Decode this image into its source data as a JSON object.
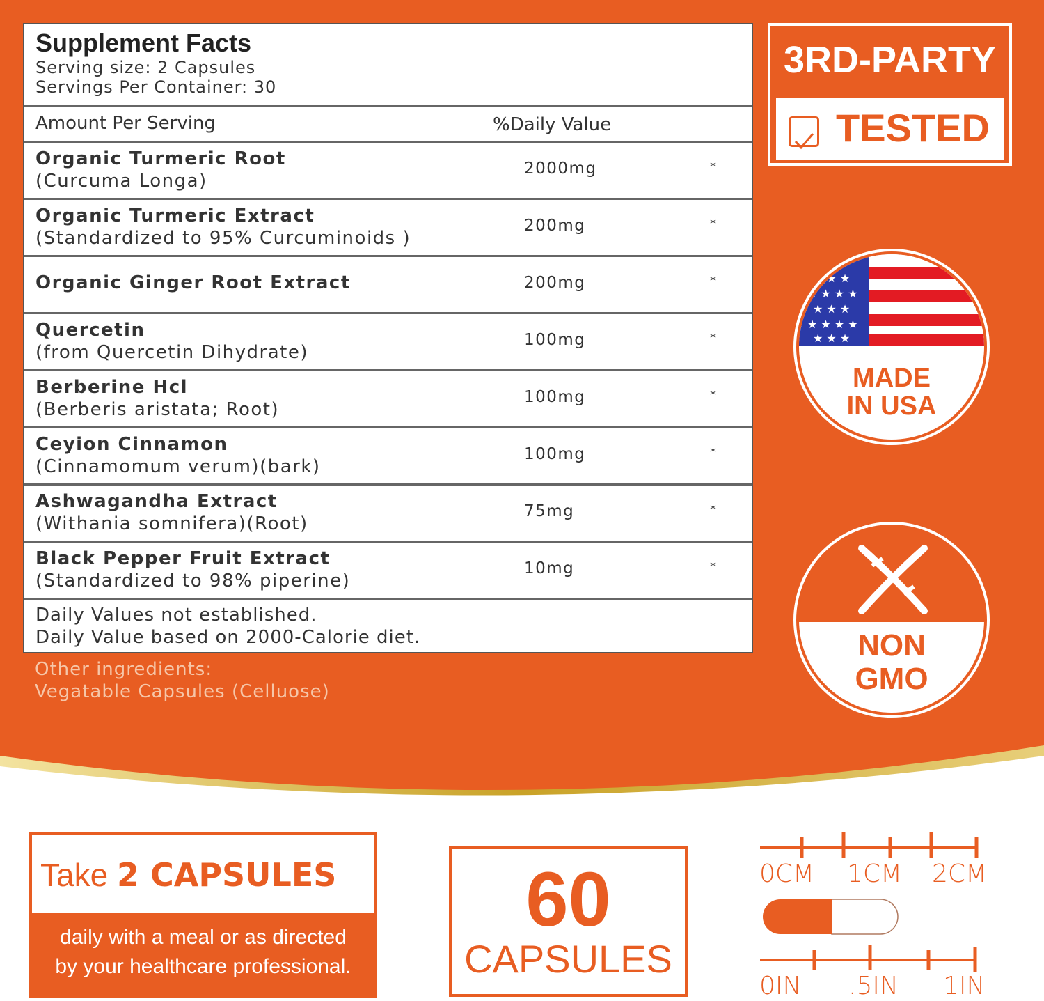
{
  "facts": {
    "title": "Supplement Facts",
    "serving_size": "Serving size: 2 Capsules",
    "servings_per_container": "Servings Per Container: 30",
    "amount_header": "Amount Per Serving",
    "dv_header": "%Daily Value",
    "rows": [
      {
        "name": "Organic Turmeric Root",
        "sub": "(Curcuma Longa)",
        "amount": "2000mg",
        "dv": "*"
      },
      {
        "name": "Organic Turmeric Extract",
        "sub": "(Standardized to 95% Curcuminoids )",
        "amount": "200mg",
        "dv": "*"
      },
      {
        "name": "Organic Ginger Root Extract",
        "sub": "",
        "amount": "200mg",
        "dv": "*"
      },
      {
        "name": "Quercetin",
        "sub": "(from Quercetin Dihydrate)",
        "amount": "100mg",
        "dv": "*"
      },
      {
        "name": "Berberine Hcl",
        "sub": "(Berberis aristata; Root)",
        "amount": "100mg",
        "dv": "*"
      },
      {
        "name": "Ceyion Cinnamon",
        "sub": "(Cinnamomum verum)(bark)",
        "amount": "100mg",
        "dv": "*"
      },
      {
        "name": "Ashwagandha Extract",
        "sub": "(Withania somnifera)(Root)",
        "amount": "75mg",
        "dv": "*"
      },
      {
        "name": "Black Pepper Fruit Extract",
        "sub": "(Standardized to 98% piperine)",
        "amount": "10mg",
        "dv": "*"
      }
    ],
    "footnote1": "Daily Values not established.",
    "footnote2": "Daily Value based on 2000-Calorie diet."
  },
  "other": {
    "label": "Other ingredients:",
    "value": "Vegatable Capsules (Celluose)"
  },
  "badges": {
    "tested_top": "3RD-PARTY",
    "tested_bottom": "TESTED",
    "usa_line1": "MADE",
    "usa_line2": "IN USA",
    "gmo_line1": "NON",
    "gmo_line2": "GMO"
  },
  "dosage": {
    "prefix": "Take ",
    "bold": "2 CAPSULES",
    "line1": "daily with a meal or as directed",
    "line2": "by your healthcare professional."
  },
  "count": {
    "number": "60",
    "label": "CAPSULES"
  },
  "ruler": {
    "cm": [
      "0CM",
      "1CM",
      "2CM"
    ],
    "in": [
      "0IN",
      ".5IN",
      "1IN"
    ]
  },
  "colors": {
    "brand": "#e85d22",
    "gold": "#c9a227"
  }
}
